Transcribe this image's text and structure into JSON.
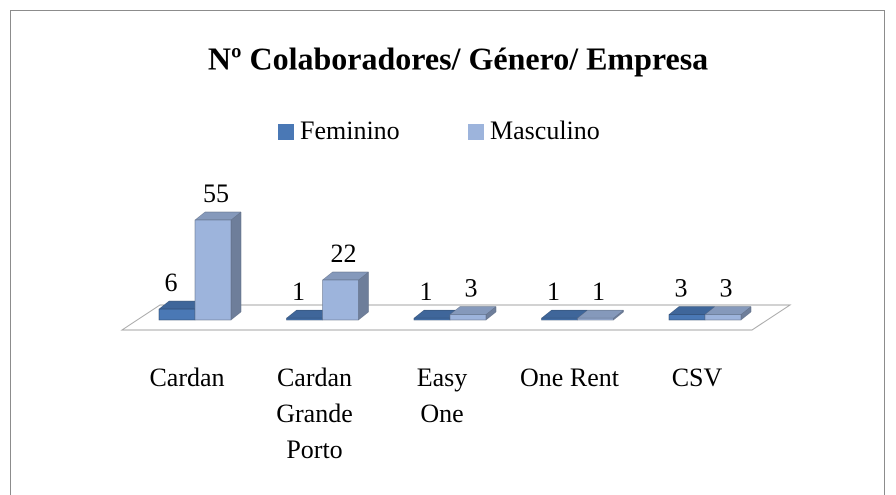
{
  "chart_data": {
    "type": "bar3d",
    "title": "Nº Colaboradores/ Género/ Empresa",
    "categories": [
      "Cardan",
      "Cardan Grande Porto",
      "Easy One",
      "One Rent",
      "CSV"
    ],
    "series": [
      {
        "name": "Feminino",
        "color": "#4a78b5",
        "values": [
          6,
          1,
          1,
          1,
          3
        ]
      },
      {
        "name": "Masculino",
        "color": "#9db4dc",
        "values": [
          55,
          22,
          3,
          1,
          3
        ]
      }
    ],
    "legend": "top"
  }
}
